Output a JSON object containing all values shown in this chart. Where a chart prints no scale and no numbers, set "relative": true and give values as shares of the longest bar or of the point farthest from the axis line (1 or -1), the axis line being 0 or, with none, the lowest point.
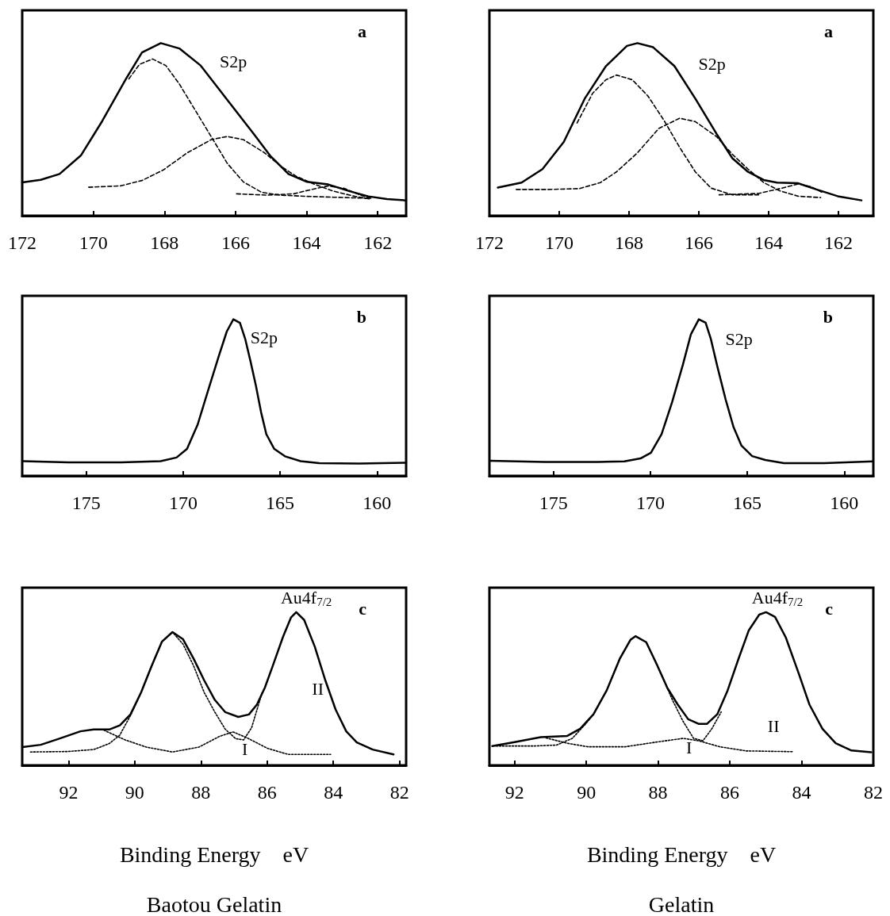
{
  "chart_data": [
    {
      "type": "line",
      "title": "a",
      "relative": true,
      "marker": "none",
      "xlim": [
        172,
        161.2
      ],
      "xticks": [
        172,
        170,
        168,
        166,
        164,
        162
      ],
      "annotations": [
        "S2p"
      ],
      "series": [
        {
          "color": "#000000",
          "line_style": "solid",
          "x": [
            172.0,
            171.48,
            170.95,
            170.35,
            169.75,
            169.08,
            168.63,
            168.1,
            167.58,
            166.98,
            166.23,
            165.48,
            165.03,
            164.51,
            163.99,
            163.39,
            162.79,
            162.26,
            161.74,
            161.2
          ],
          "values": [
            0.193,
            0.208,
            0.242,
            0.349,
            0.548,
            0.793,
            0.946,
            1.0,
            0.969,
            0.87,
            0.671,
            0.472,
            0.349,
            0.242,
            0.196,
            0.181,
            0.142,
            0.112,
            0.096,
            0.089
          ]
        },
        {
          "color": "#000000",
          "line_style": "dashed",
          "x": [
            169.0,
            168.7,
            168.33,
            167.96,
            167.58,
            167.13,
            166.68,
            166.23,
            165.78,
            165.26,
            164.73,
            163.99,
            163.24,
            162.26
          ],
          "values": [
            0.793,
            0.877,
            0.908,
            0.87,
            0.763,
            0.61,
            0.457,
            0.303,
            0.196,
            0.135,
            0.119,
            0.112,
            0.107,
            0.101
          ]
        },
        {
          "color": "#000000",
          "line_style": "dashed",
          "x": [
            170.13,
            169.23,
            168.63,
            168.03,
            167.36,
            166.68,
            166.23,
            165.78,
            165.18,
            164.73,
            164.28,
            163.76,
            163.24,
            162.64,
            162.19
          ],
          "values": [
            0.165,
            0.173,
            0.204,
            0.265,
            0.364,
            0.441,
            0.459,
            0.441,
            0.364,
            0.288,
            0.227,
            0.181,
            0.142,
            0.112,
            0.096
          ]
        },
        {
          "color": "#000000",
          "line_style": "dashed",
          "x": [
            165.97,
            165.11,
            164.36,
            163.84,
            163.39,
            162.94,
            162.49,
            162.19
          ],
          "values": [
            0.127,
            0.119,
            0.127,
            0.153,
            0.173,
            0.158,
            0.12,
            0.101
          ]
        }
      ]
    },
    {
      "type": "line",
      "title": "a",
      "relative": true,
      "marker": "none",
      "xlim": [
        172,
        161
      ],
      "xticks": [
        172,
        170,
        168,
        166,
        164,
        162
      ],
      "annotations": [
        "S2p"
      ],
      "series": [
        {
          "color": "#000000",
          "line_style": "solid",
          "x": [
            171.76,
            171.08,
            170.48,
            169.87,
            169.27,
            168.66,
            168.06,
            167.76,
            167.31,
            166.7,
            166.1,
            165.49,
            165.04,
            164.59,
            164.14,
            163.76,
            163.15,
            162.63,
            162.02,
            161.34
          ],
          "values": [
            0.163,
            0.192,
            0.27,
            0.427,
            0.678,
            0.867,
            0.984,
            1.0,
            0.976,
            0.867,
            0.678,
            0.474,
            0.333,
            0.254,
            0.207,
            0.192,
            0.188,
            0.152,
            0.113,
            0.089
          ]
        },
        {
          "color": "#000000",
          "line_style": "dashed",
          "x": [
            169.49,
            169.04,
            168.66,
            168.36,
            167.91,
            167.46,
            167.0,
            166.55,
            166.1,
            165.65,
            165.04,
            164.29
          ],
          "values": [
            0.537,
            0.71,
            0.788,
            0.815,
            0.788,
            0.694,
            0.553,
            0.396,
            0.254,
            0.16,
            0.121,
            0.121
          ]
        },
        {
          "color": "#000000",
          "line_style": "dashed",
          "x": [
            171.23,
            170.32,
            169.42,
            168.82,
            168.36,
            167.76,
            167.15,
            166.55,
            166.1,
            165.49,
            165.04,
            164.59,
            164.14,
            163.68,
            163.15,
            162.51
          ],
          "values": [
            0.152,
            0.152,
            0.157,
            0.192,
            0.254,
            0.364,
            0.505,
            0.565,
            0.545,
            0.458,
            0.356,
            0.27,
            0.192,
            0.144,
            0.113,
            0.105
          ]
        },
        {
          "color": "#000000",
          "line_style": "dashed",
          "x": [
            165.42,
            164.29,
            163.68,
            163.15,
            162.78,
            162.48
          ],
          "values": [
            0.121,
            0.129,
            0.157,
            0.184,
            0.168,
            0.137
          ]
        }
      ]
    },
    {
      "type": "line",
      "title": "b",
      "relative": true,
      "marker": "none",
      "xlim": [
        178.3,
        158.5
      ],
      "xticks": [
        175,
        170,
        165,
        160
      ],
      "annotations": [
        "S2p"
      ],
      "series": [
        {
          "color": "#000000",
          "line_style": "solid",
          "x": [
            178.24,
            175.93,
            173.2,
            171.16,
            170.34,
            169.8,
            169.25,
            168.71,
            168.16,
            167.75,
            167.41,
            167.07,
            166.8,
            166.53,
            166.25,
            165.98,
            165.71,
            165.3,
            164.75,
            163.94,
            162.98,
            160.94,
            158.5
          ],
          "values": [
            0.094,
            0.086,
            0.086,
            0.094,
            0.117,
            0.172,
            0.328,
            0.547,
            0.766,
            0.922,
            1.0,
            0.977,
            0.875,
            0.734,
            0.578,
            0.406,
            0.266,
            0.172,
            0.125,
            0.094,
            0.081,
            0.078,
            0.084
          ]
        }
      ]
    },
    {
      "type": "line",
      "title": "b",
      "relative": true,
      "marker": "none",
      "xlim": [
        178.3,
        158.5
      ],
      "xticks": [
        175,
        170,
        165,
        160
      ],
      "annotations": [
        "S2p"
      ],
      "series": [
        {
          "color": "#000000",
          "line_style": "solid",
          "x": [
            178.26,
            175.45,
            172.71,
            171.34,
            170.51,
            169.97,
            169.42,
            168.87,
            168.32,
            167.91,
            167.5,
            167.15,
            166.88,
            166.54,
            166.12,
            165.71,
            165.3,
            164.75,
            164.07,
            163.11,
            161.05,
            158.51
          ],
          "values": [
            0.096,
            0.089,
            0.089,
            0.092,
            0.111,
            0.148,
            0.267,
            0.474,
            0.711,
            0.904,
            1.0,
            0.978,
            0.874,
            0.696,
            0.489,
            0.311,
            0.193,
            0.126,
            0.101,
            0.081,
            0.081,
            0.092
          ]
        }
      ]
    },
    {
      "type": "line",
      "title": "c",
      "relative": true,
      "marker": "none",
      "xlim": [
        93.4,
        81.8
      ],
      "xticks": [
        92,
        90,
        88,
        86,
        84,
        82
      ],
      "xlabel": "Binding Energy    eV",
      "annotations": [
        "Au4f$_{7/2}$",
        "II",
        "I",
        "Baotou Gelatin"
      ],
      "series": [
        {
          "color": "#000000",
          "line_style": "solid",
          "x": [
            93.39,
            92.84,
            92.28,
            91.64,
            91.24,
            90.77,
            90.45,
            90.13,
            89.81,
            89.49,
            89.18,
            88.86,
            88.54,
            88.22,
            87.9,
            87.58,
            87.27,
            86.87,
            86.55,
            86.31,
            86.07,
            85.83,
            85.52,
            85.28,
            85.12,
            84.88,
            84.56,
            84.24,
            83.93,
            83.61,
            83.29,
            82.81,
            82.18
          ],
          "values": [
            0.119,
            0.134,
            0.174,
            0.222,
            0.234,
            0.234,
            0.261,
            0.332,
            0.475,
            0.649,
            0.807,
            0.87,
            0.823,
            0.696,
            0.554,
            0.427,
            0.348,
            0.316,
            0.332,
            0.396,
            0.506,
            0.649,
            0.839,
            0.965,
            1.0,
            0.949,
            0.775,
            0.554,
            0.364,
            0.222,
            0.15,
            0.103,
            0.071
          ]
        },
        {
          "color": "#000000",
          "line_style": "dotted",
          "x": [
            90.93,
            90.29,
            89.65,
            88.86,
            88.06,
            87.43,
            87.03,
            86.63,
            85.99,
            85.36,
            84.08
          ],
          "values": [
            0.229,
            0.166,
            0.119,
            0.087,
            0.119,
            0.19,
            0.218,
            0.182,
            0.111,
            0.071,
            0.071
          ]
        },
        {
          "color": "#000000",
          "line_style": "dotted",
          "x": [
            93.15,
            92.04,
            91.24,
            90.77,
            90.45,
            90.13,
            89.81,
            89.49,
            89.18,
            88.86,
            88.54,
            88.22,
            87.9,
            87.58,
            87.27,
            86.95,
            86.71,
            86.47,
            86.15
          ],
          "values": [
            0.087,
            0.09,
            0.103,
            0.142,
            0.198,
            0.324,
            0.475,
            0.649,
            0.807,
            0.87,
            0.791,
            0.649,
            0.475,
            0.348,
            0.237,
            0.174,
            0.166,
            0.245,
            0.475
          ]
        }
      ]
    },
    {
      "type": "line",
      "title": "c",
      "relative": true,
      "marker": "none",
      "xlim": [
        92.7,
        82.0
      ],
      "xticks": [
        92,
        90,
        88,
        86,
        84,
        82
      ],
      "xlabel": "Binding Energy    eV",
      "annotations": [
        "Au4f$_{7/2}$",
        "II",
        "I",
        "Gelatin"
      ],
      "series": [
        {
          "color": "#000000",
          "line_style": "solid",
          "x": [
            92.62,
            92.0,
            91.27,
            90.53,
            90.17,
            89.8,
            89.43,
            89.07,
            88.77,
            88.63,
            88.33,
            88.04,
            87.74,
            87.45,
            87.16,
            86.86,
            86.64,
            86.35,
            86.06,
            85.76,
            85.47,
            85.18,
            84.99,
            84.74,
            84.44,
            84.08,
            83.78,
            83.42,
            83.05,
            82.61,
            82.06
          ],
          "values": [
            0.126,
            0.152,
            0.184,
            0.192,
            0.239,
            0.333,
            0.49,
            0.694,
            0.819,
            0.843,
            0.804,
            0.662,
            0.505,
            0.396,
            0.301,
            0.27,
            0.27,
            0.333,
            0.49,
            0.694,
            0.882,
            0.984,
            1.0,
            0.969,
            0.835,
            0.6,
            0.396,
            0.239,
            0.144,
            0.097,
            0.085
          ]
        },
        {
          "color": "#000000",
          "line_style": "dotted",
          "x": [
            91.12,
            90.53,
            89.95,
            88.92,
            88.04,
            87.3,
            86.86,
            86.28,
            85.54,
            84.22
          ],
          "values": [
            0.179,
            0.144,
            0.121,
            0.121,
            0.152,
            0.176,
            0.16,
            0.121,
            0.094,
            0.089
          ]
        },
        {
          "color": "#000000",
          "line_style": "dotted",
          "x": [
            92.51,
            91.49,
            90.83,
            90.39,
            90.02,
            89.8,
            89.43,
            89.07,
            88.77,
            88.63,
            88.33,
            87.89,
            87.6,
            87.3,
            87.01,
            86.75,
            86.5,
            86.24
          ],
          "values": [
            0.126,
            0.126,
            0.132,
            0.176,
            0.27,
            0.333,
            0.49,
            0.694,
            0.819,
            0.843,
            0.804,
            0.584,
            0.427,
            0.286,
            0.176,
            0.16,
            0.239,
            0.349
          ]
        }
      ]
    }
  ]
}
